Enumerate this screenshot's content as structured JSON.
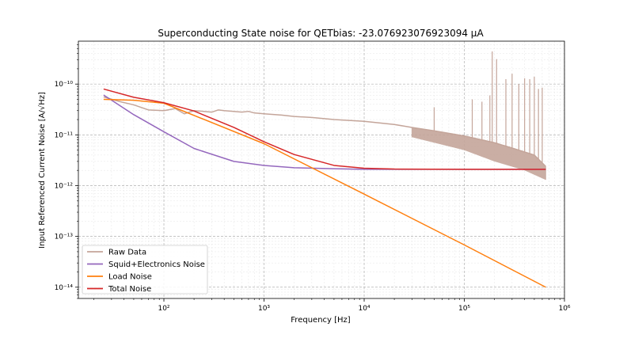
{
  "chart_data": {
    "type": "line",
    "title": "Superconducting State noise for QETbias: -23.076923076923094 μA",
    "xlabel": "Frequency [Hz]",
    "ylabel": "Input Referenced Current Noise [A/√Hz]",
    "xscale": "log",
    "yscale": "log",
    "xlim": [
      14,
      1000000
    ],
    "ylim": [
      6e-15,
      7e-10
    ],
    "grid": true,
    "legend_position": "lower-left",
    "x_ticks": [
      {
        "value": 100,
        "label": "10²"
      },
      {
        "value": 1000,
        "label": "10³"
      },
      {
        "value": 10000,
        "label": "10⁴"
      },
      {
        "value": 100000,
        "label": "10⁵"
      },
      {
        "value": 1000000,
        "label": "10⁶"
      }
    ],
    "y_ticks": [
      {
        "value": 1e-14,
        "label": "10⁻¹⁴"
      },
      {
        "value": 1e-13,
        "label": "10⁻¹³"
      },
      {
        "value": 1e-12,
        "label": "10⁻¹²"
      },
      {
        "value": 1e-11,
        "label": "10⁻¹¹"
      },
      {
        "value": 1e-10,
        "label": "10⁻¹⁰"
      }
    ],
    "series": [
      {
        "name": "Raw Data",
        "color": "#c4a59a",
        "width": 1.5,
        "x": [
          25,
          35,
          50,
          70,
          100,
          130,
          160,
          200,
          250,
          300,
          350,
          400,
          500,
          600,
          700,
          800,
          1000,
          1500,
          2000,
          3000,
          5000,
          10000,
          20000,
          30000,
          50000,
          100000,
          200000,
          300000,
          500000,
          650000
        ],
        "y": [
          5.6e-11,
          4.6e-11,
          3.9e-11,
          3.1e-11,
          3e-11,
          3.3e-11,
          2.6e-11,
          3e-11,
          2.9e-11,
          2.8e-11,
          3.1e-11,
          3e-11,
          2.9e-11,
          2.8e-11,
          2.9e-11,
          2.7e-11,
          2.6e-11,
          2.45e-11,
          2.3e-11,
          2.2e-11,
          2e-11,
          1.85e-11,
          1.6e-11,
          1.4e-11,
          1.2e-11,
          9.5e-12,
          7e-12,
          5.5e-12,
          4e-12,
          2.4e-12
        ],
        "spikes": [
          {
            "x": 50000,
            "y": 3.5e-11
          },
          {
            "x": 120000,
            "y": 5e-11
          },
          {
            "x": 150000,
            "y": 4.5e-11
          },
          {
            "x": 180000,
            "y": 6e-11
          },
          {
            "x": 190000,
            "y": 4.4e-10
          },
          {
            "x": 210000,
            "y": 3.1e-10
          },
          {
            "x": 260000,
            "y": 1.25e-10
          },
          {
            "x": 300000,
            "y": 1.6e-10
          },
          {
            "x": 350000,
            "y": 1e-10
          },
          {
            "x": 400000,
            "y": 1.3e-10
          },
          {
            "x": 450000,
            "y": 1.25e-10
          },
          {
            "x": 500000,
            "y": 1.4e-10
          },
          {
            "x": 550000,
            "y": 8e-11
          },
          {
            "x": 600000,
            "y": 8.5e-11
          }
        ],
        "band_low": [
          {
            "x": 30000,
            "y": 9e-12
          },
          {
            "x": 100000,
            "y": 5e-12
          },
          {
            "x": 200000,
            "y": 3e-12
          },
          {
            "x": 400000,
            "y": 2e-12
          },
          {
            "x": 650000,
            "y": 1.3e-12
          }
        ]
      },
      {
        "name": "Squid+Electronics Noise",
        "color": "#9467bd",
        "width": 1.5,
        "x": [
          25,
          50,
          100,
          200,
          500,
          1000,
          2000,
          5000,
          10000,
          100000,
          650000
        ],
        "y": [
          6.1e-11,
          2.5e-11,
          1.15e-11,
          5.4e-12,
          3e-12,
          2.5e-12,
          2.25e-12,
          2.15e-12,
          2.1e-12,
          2.1e-12,
          2.1e-12
        ]
      },
      {
        "name": "Load Noise",
        "color": "#ff7f0e",
        "width": 1.5,
        "x": [
          25,
          50,
          100,
          1000,
          10000,
          100000,
          650000
        ],
        "y": [
          5e-11,
          4.8e-11,
          4.2e-11,
          6.7e-12,
          6.8e-13,
          6.8e-14,
          1e-14
        ]
      },
      {
        "name": "Total Noise",
        "color": "#d62728",
        "width": 1.5,
        "x": [
          25,
          50,
          100,
          200,
          500,
          1000,
          2000,
          5000,
          10000,
          20000,
          100000,
          650000
        ],
        "y": [
          8e-11,
          5.5e-11,
          4.3e-11,
          2.95e-11,
          1.4e-11,
          7.3e-12,
          4.1e-12,
          2.5e-12,
          2.2e-12,
          2.12e-12,
          2.1e-12,
          2.1e-12
        ]
      }
    ]
  }
}
